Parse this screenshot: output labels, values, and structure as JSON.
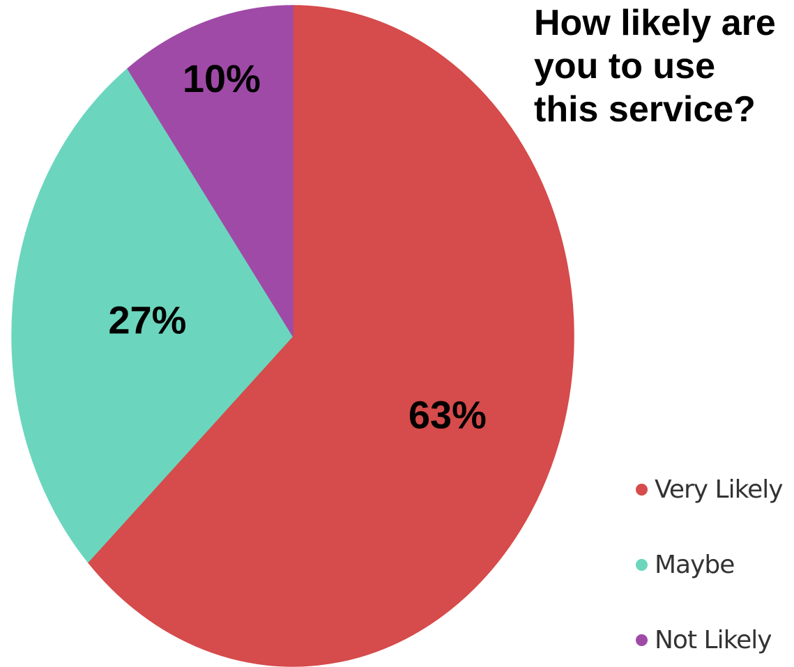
{
  "chart_data": {
    "type": "pie",
    "title_lines": [
      "How likely are",
      "you to use",
      "this service?"
    ],
    "categories": [
      "Very Likely",
      "Maybe",
      "Not Likely"
    ],
    "values": [
      63,
      27,
      10
    ],
    "slice_labels": [
      "63%",
      "27%",
      "10%"
    ],
    "colors": [
      "#d64b4b",
      "#6bd6bd",
      "#a04aa8"
    ],
    "legend_position": "bottom-right"
  }
}
